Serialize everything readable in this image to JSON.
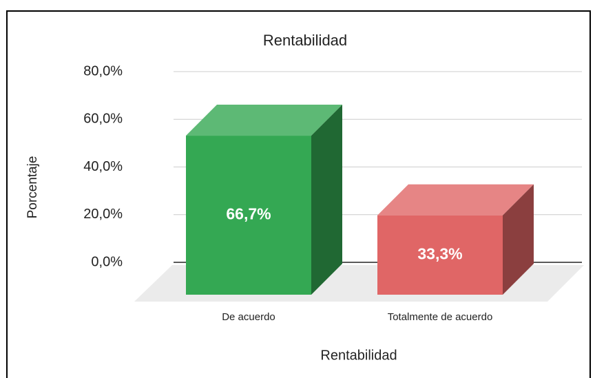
{
  "chart_data": {
    "type": "bar3d",
    "title": "Rentabilidad",
    "x_label": "Rentabilidad",
    "y_label": "Porcentaje",
    "categories": [
      "De acuerdo",
      "Totalmente de acuerdo"
    ],
    "values": [
      66.7,
      33.3
    ],
    "value_labels": [
      "66,7%",
      "33,3%"
    ],
    "colors": [
      "#34a853",
      "#e06666"
    ],
    "ylim": [
      0,
      80
    ],
    "yticks": [
      {
        "value": 0,
        "label": "0,0%"
      },
      {
        "value": 20,
        "label": "20,0%"
      },
      {
        "value": 40,
        "label": "40,0%"
      },
      {
        "value": 60,
        "label": "60,0%"
      },
      {
        "value": 80,
        "label": "80,0%"
      }
    ],
    "grid": true
  }
}
